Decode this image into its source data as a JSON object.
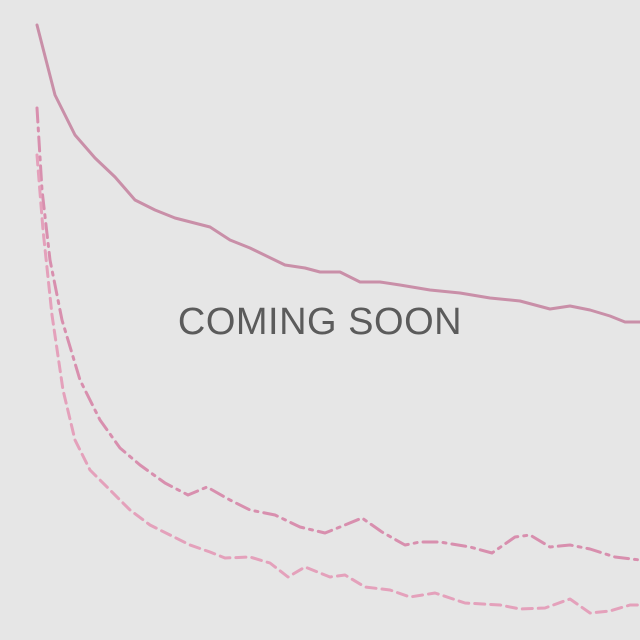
{
  "placeholder": {
    "message": "COMING SOON"
  },
  "colors": {
    "background": "#e6e6e6",
    "curve": "#c98fa8",
    "text": "#5b5b5b"
  },
  "icons": {
    "decorative_curves": "decreasing-curves-icon"
  }
}
